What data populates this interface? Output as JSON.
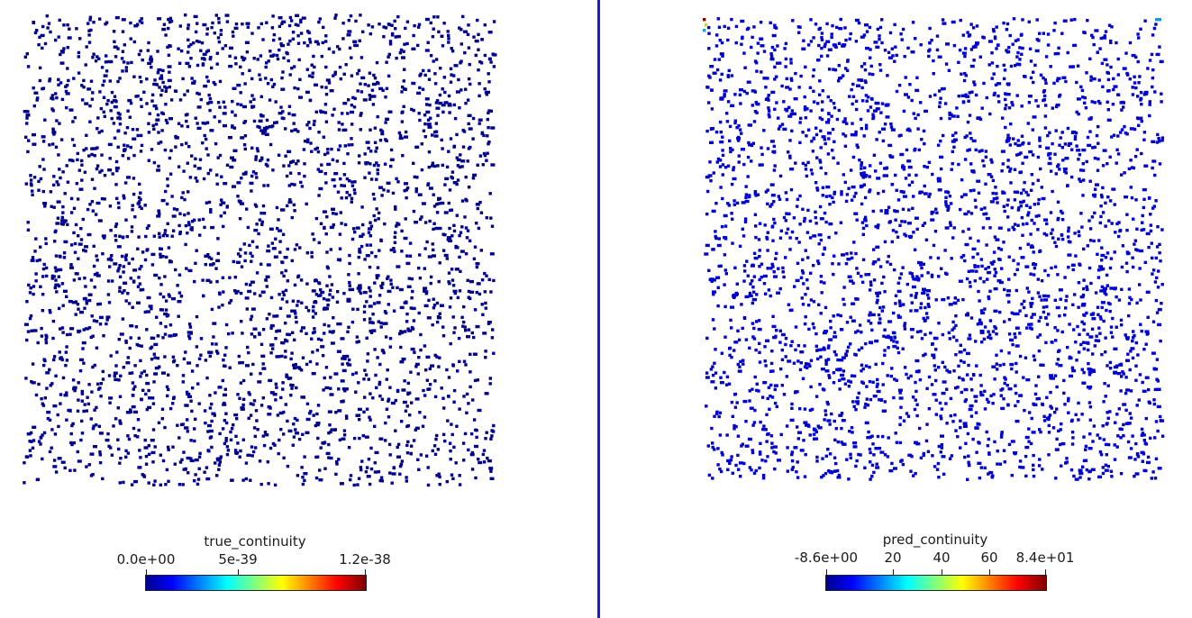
{
  "chart_data": [
    {
      "type": "scatter",
      "colorbar": {
        "title": "true_continuity",
        "range": [
          0,
          1.2e-38
        ],
        "ticks": [
          {
            "value": 0,
            "label": "0.0e+00"
          },
          {
            "value": 5e-39,
            "label": "5e-39"
          },
          {
            "value": 1.2e-38,
            "label": "1.2e-38"
          }
        ],
        "colormap": "jet"
      },
      "point_color": "#00008f",
      "point_count_estimate": 3000,
      "value_description": "all points at minimum of colour range"
    },
    {
      "type": "scatter",
      "colorbar": {
        "title": "pred_continuity",
        "range": [
          -8.6,
          84
        ],
        "ticks": [
          {
            "value": -8.6,
            "label": "-8.6e+00"
          },
          {
            "value": 20,
            "label": "20"
          },
          {
            "value": 40,
            "label": "40"
          },
          {
            "value": 60,
            "label": "60"
          },
          {
            "value": 84,
            "label": "8.4e+01"
          }
        ],
        "colormap": "jet"
      },
      "point_color": "#0000d0",
      "point_count_estimate": 3000,
      "outliers": [
        {
          "location": "top-left corner",
          "color": "#800000"
        },
        {
          "location": "top-left corner",
          "color": "#c8d820"
        },
        {
          "location": "top-left corner",
          "color": "#20a0e0"
        },
        {
          "location": "top-right corner",
          "color": "#2090e0"
        }
      ]
    }
  ],
  "divider_color": "#1a1ad6"
}
